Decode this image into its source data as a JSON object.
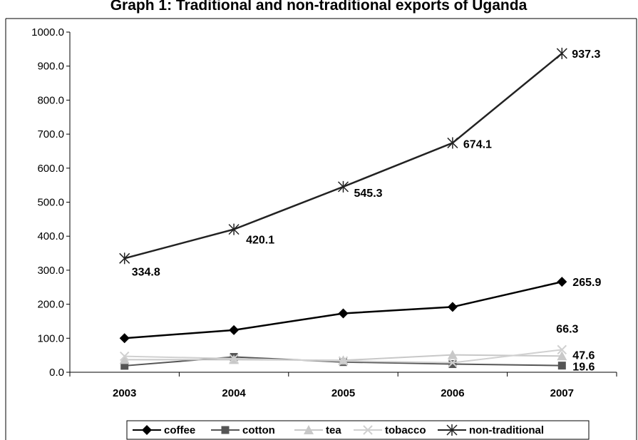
{
  "chart_data": {
    "type": "line",
    "title": "Graph 1: Traditional and non-traditional exports of Uganda",
    "xlabel": "",
    "ylabel": "",
    "categories": [
      "2003",
      "2004",
      "2005",
      "2006",
      "2007"
    ],
    "ylim": [
      0,
      1000
    ],
    "yticks": [
      "0.0",
      "100.0",
      "200.0",
      "300.0",
      "400.0",
      "500.0",
      "600.0",
      "700.0",
      "800.0",
      "900.0",
      "1000.0"
    ],
    "legend_position": "bottom",
    "grid": false,
    "series": [
      {
        "name": "coffee",
        "values": [
          100.0,
          124.0,
          173.0,
          192.0,
          265.9
        ],
        "color": "#000000",
        "marker": "diamond",
        "labels": [
          null,
          null,
          null,
          null,
          "265.9"
        ]
      },
      {
        "name": "cotton",
        "values": [
          19.0,
          45.0,
          30.0,
          24.0,
          19.6
        ],
        "color": "#555555",
        "marker": "square",
        "labels": [
          null,
          null,
          null,
          null,
          "19.6"
        ]
      },
      {
        "name": "tea",
        "values": [
          37.0,
          37.0,
          35.0,
          51.0,
          47.6
        ],
        "color": "#c8c8c8",
        "marker": "triangle",
        "labels": [
          null,
          null,
          null,
          null,
          "47.6"
        ]
      },
      {
        "name": "tobacco",
        "values": [
          47.0,
          40.0,
          33.0,
          28.0,
          66.3
        ],
        "color": "#d0d0d0",
        "marker": "x",
        "labels": [
          null,
          null,
          null,
          null,
          "66.3"
        ]
      },
      {
        "name": "non-traditional",
        "values": [
          334.8,
          420.1,
          545.3,
          674.1,
          937.3
        ],
        "color": "#222222",
        "marker": "asterisk",
        "labels": [
          "334.8",
          "420.1",
          "545.3",
          "674.1",
          "937.3"
        ]
      }
    ]
  }
}
